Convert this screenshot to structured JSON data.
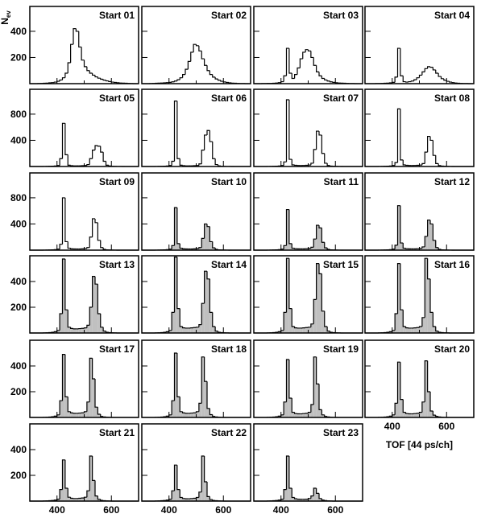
{
  "chart_data": {
    "type": "histogram",
    "ylabel": "N",
    "ylabel_sub": "ev",
    "xlabel": "TOF [44 ps/ch]",
    "xlim": [
      300,
      700
    ],
    "xticks": [
      400,
      600
    ],
    "xminorticks": [
      500
    ],
    "color": "#000000",
    "fill_color": "#c0c0c0",
    "bins": [
      300,
      310,
      320,
      330,
      340,
      350,
      360,
      370,
      380,
      390,
      400,
      410,
      420,
      430,
      440,
      450,
      460,
      470,
      480,
      490,
      500,
      510,
      520,
      530,
      540,
      550,
      560,
      570,
      580,
      590,
      600,
      610,
      620,
      630,
      640,
      650,
      660,
      670,
      680,
      690,
      700
    ],
    "panels": [
      {
        "title": "Start 01",
        "ylim": [
          0,
          590
        ],
        "yticks": [
          200,
          400
        ],
        "values": [
          0,
          0,
          0,
          1,
          2,
          3,
          4,
          6,
          8,
          12,
          18,
          28,
          45,
          80,
          160,
          300,
          420,
          400,
          280,
          180,
          130,
          100,
          80,
          65,
          52,
          42,
          34,
          27,
          21,
          16,
          12,
          9,
          7,
          5,
          4,
          3,
          2,
          1,
          0,
          0
        ]
      },
      {
        "title": "Start 02",
        "ylim": [
          0,
          590
        ],
        "yticks": [
          200,
          400
        ],
        "values": [
          0,
          0,
          0,
          1,
          2,
          3,
          4,
          5,
          6,
          8,
          10,
          14,
          20,
          30,
          45,
          70,
          110,
          170,
          240,
          300,
          290,
          250,
          190,
          140,
          100,
          70,
          50,
          36,
          26,
          18,
          13,
          9,
          6,
          4,
          3,
          2,
          1,
          1,
          0,
          0
        ]
      },
      {
        "title": "Start 03",
        "ylim": [
          0,
          590
        ],
        "yticks": [
          200,
          400
        ],
        "values": [
          0,
          0,
          0,
          1,
          1,
          2,
          2,
          3,
          5,
          8,
          15,
          60,
          270,
          80,
          40,
          70,
          120,
          190,
          240,
          260,
          250,
          200,
          140,
          90,
          60,
          40,
          28,
          20,
          14,
          10,
          7,
          5,
          4,
          3,
          2,
          1,
          1,
          0,
          0,
          0
        ]
      },
      {
        "title": "Start 04",
        "ylim": [
          0,
          590
        ],
        "yticks": [
          200,
          400
        ],
        "values": [
          0,
          0,
          0,
          0,
          1,
          1,
          2,
          3,
          4,
          6,
          10,
          50,
          270,
          60,
          15,
          12,
          15,
          20,
          30,
          45,
          65,
          90,
          115,
          130,
          125,
          105,
          80,
          55,
          38,
          26,
          18,
          12,
          8,
          5,
          3,
          2,
          1,
          1,
          0,
          0
        ]
      },
      {
        "title": "Start 05",
        "ylim": [
          0,
          1180
        ],
        "yticks": [
          400,
          800
        ],
        "values": [
          0,
          0,
          0,
          0,
          0,
          1,
          2,
          3,
          5,
          8,
          15,
          120,
          660,
          180,
          20,
          12,
          10,
          10,
          10,
          12,
          15,
          30,
          120,
          250,
          320,
          310,
          220,
          80,
          20,
          8,
          4,
          2,
          1,
          1,
          0,
          0,
          0,
          0,
          0,
          0
        ]
      },
      {
        "title": "Start 06",
        "ylim": [
          0,
          1180
        ],
        "yticks": [
          400,
          800
        ],
        "values": [
          0,
          0,
          0,
          0,
          0,
          1,
          2,
          3,
          5,
          8,
          15,
          80,
          1000,
          120,
          20,
          12,
          10,
          10,
          10,
          12,
          15,
          40,
          250,
          480,
          550,
          380,
          120,
          30,
          10,
          4,
          2,
          1,
          1,
          0,
          0,
          0,
          0,
          0,
          0,
          0
        ]
      },
      {
        "title": "Start 07",
        "ylim": [
          0,
          1180
        ],
        "yticks": [
          400,
          800
        ],
        "values": [
          0,
          0,
          0,
          0,
          0,
          1,
          2,
          3,
          5,
          8,
          15,
          70,
          1020,
          110,
          25,
          18,
          15,
          15,
          16,
          18,
          22,
          50,
          260,
          540,
          480,
          200,
          50,
          15,
          6,
          3,
          2,
          1,
          0,
          0,
          0,
          0,
          0,
          0,
          0,
          0
        ]
      },
      {
        "title": "Start 08",
        "ylim": [
          0,
          1180
        ],
        "yticks": [
          400,
          800
        ],
        "values": [
          0,
          0,
          0,
          0,
          0,
          1,
          2,
          3,
          5,
          8,
          15,
          60,
          880,
          100,
          25,
          18,
          15,
          15,
          16,
          18,
          22,
          45,
          220,
          460,
          400,
          170,
          45,
          14,
          6,
          3,
          2,
          1,
          0,
          0,
          0,
          0,
          0,
          0,
          0,
          0
        ]
      },
      {
        "title": "Start 09",
        "ylim": [
          0,
          1180
        ],
        "yticks": [
          400,
          800
        ],
        "values": [
          0,
          0,
          0,
          0,
          0,
          1,
          2,
          3,
          5,
          8,
          15,
          90,
          800,
          130,
          30,
          20,
          18,
          18,
          18,
          20,
          25,
          40,
          200,
          480,
          420,
          150,
          40,
          12,
          5,
          3,
          2,
          1,
          0,
          0,
          0,
          0,
          0,
          0,
          0,
          0
        ]
      },
      {
        "title": "Start 10",
        "ylim": [
          0,
          1180
        ],
        "yticks": [
          400,
          800
        ],
        "filled": true,
        "values": [
          0,
          0,
          0,
          0,
          0,
          1,
          2,
          3,
          5,
          8,
          15,
          70,
          650,
          100,
          30,
          20,
          18,
          18,
          18,
          20,
          25,
          40,
          180,
          400,
          360,
          130,
          35,
          12,
          5,
          3,
          2,
          1,
          0,
          0,
          0,
          0,
          0,
          0,
          0,
          0
        ]
      },
      {
        "title": "Start 11",
        "ylim": [
          0,
          1180
        ],
        "yticks": [
          400,
          800
        ],
        "filled": true,
        "values": [
          0,
          0,
          0,
          0,
          0,
          1,
          2,
          3,
          5,
          8,
          15,
          70,
          620,
          100,
          30,
          22,
          20,
          20,
          20,
          22,
          28,
          45,
          170,
          380,
          340,
          120,
          35,
          12,
          5,
          3,
          2,
          1,
          0,
          0,
          0,
          0,
          0,
          0,
          0,
          0
        ]
      },
      {
        "title": "Start 12",
        "ylim": [
          0,
          1180
        ],
        "yticks": [
          400,
          800
        ],
        "filled": true,
        "values": [
          0,
          0,
          0,
          0,
          0,
          1,
          2,
          3,
          5,
          8,
          15,
          75,
          680,
          110,
          30,
          22,
          20,
          20,
          20,
          22,
          28,
          50,
          210,
          460,
          400,
          150,
          40,
          12,
          5,
          3,
          2,
          1,
          0,
          0,
          0,
          0,
          0,
          0,
          0,
          0
        ]
      },
      {
        "title": "Start 13",
        "ylim": [
          0,
          600
        ],
        "yticks": [
          200,
          400
        ],
        "filled": true,
        "values": [
          0,
          0,
          0,
          0,
          0,
          1,
          2,
          3,
          6,
          10,
          20,
          150,
          575,
          180,
          45,
          35,
          32,
          32,
          34,
          36,
          40,
          60,
          200,
          440,
          380,
          150,
          45,
          15,
          6,
          3,
          2,
          1,
          0,
          0,
          0,
          0,
          0,
          0,
          0,
          0
        ]
      },
      {
        "title": "Start 14",
        "ylim": [
          0,
          600
        ],
        "yticks": [
          200,
          400
        ],
        "filled": true,
        "values": [
          0,
          0,
          0,
          0,
          0,
          1,
          2,
          3,
          6,
          10,
          20,
          160,
          590,
          190,
          50,
          40,
          38,
          38,
          40,
          42,
          45,
          65,
          230,
          480,
          420,
          160,
          50,
          15,
          6,
          3,
          2,
          1,
          0,
          0,
          0,
          0,
          0,
          0,
          0,
          0
        ]
      },
      {
        "title": "Start 15",
        "ylim": [
          0,
          600
        ],
        "yticks": [
          200,
          400
        ],
        "filled": true,
        "values": [
          0,
          0,
          0,
          0,
          0,
          1,
          2,
          3,
          6,
          10,
          20,
          160,
          580,
          190,
          50,
          40,
          38,
          38,
          40,
          42,
          45,
          70,
          260,
          540,
          460,
          170,
          50,
          15,
          6,
          3,
          2,
          1,
          0,
          0,
          0,
          0,
          0,
          0,
          0,
          0
        ]
      },
      {
        "title": "Start 16",
        "ylim": [
          0,
          600
        ],
        "yticks": [
          200,
          400
        ],
        "filled": true,
        "values": [
          0,
          0,
          0,
          0,
          0,
          1,
          2,
          3,
          6,
          10,
          20,
          150,
          540,
          180,
          50,
          40,
          38,
          38,
          40,
          42,
          50,
          120,
          580,
          420,
          160,
          50,
          15,
          6,
          3,
          2,
          1,
          0,
          0,
          0,
          0,
          0,
          0,
          0,
          0,
          0
        ]
      },
      {
        "title": "Start 17",
        "ylim": [
          0,
          600
        ],
        "yticks": [
          200,
          400
        ],
        "filled": true,
        "values": [
          0,
          0,
          0,
          0,
          0,
          1,
          2,
          3,
          6,
          10,
          20,
          130,
          490,
          160,
          45,
          35,
          32,
          32,
          34,
          36,
          45,
          120,
          460,
          300,
          80,
          25,
          8,
          4,
          2,
          1,
          0,
          0,
          0,
          0,
          0,
          0,
          0,
          0,
          0,
          0
        ]
      },
      {
        "title": "Start 18",
        "ylim": [
          0,
          600
        ],
        "yticks": [
          200,
          400
        ],
        "filled": true,
        "values": [
          0,
          0,
          0,
          0,
          0,
          1,
          2,
          3,
          6,
          10,
          20,
          130,
          500,
          160,
          45,
          35,
          32,
          32,
          34,
          36,
          45,
          110,
          470,
          280,
          70,
          22,
          8,
          4,
          2,
          1,
          0,
          0,
          0,
          0,
          0,
          0,
          0,
          0,
          0,
          0
        ]
      },
      {
        "title": "Start 19",
        "ylim": [
          0,
          600
        ],
        "yticks": [
          200,
          400
        ],
        "filled": true,
        "values": [
          0,
          0,
          0,
          0,
          0,
          1,
          2,
          3,
          6,
          10,
          20,
          120,
          450,
          150,
          40,
          30,
          28,
          28,
          30,
          32,
          40,
          100,
          470,
          260,
          60,
          20,
          8,
          4,
          2,
          1,
          0,
          0,
          0,
          0,
          0,
          0,
          0,
          0,
          0,
          0
        ]
      },
      {
        "title": "Start 20",
        "ylim": [
          0,
          600
        ],
        "yticks": [
          200,
          400
        ],
        "filled": true,
        "values": [
          0,
          0,
          0,
          0,
          0,
          1,
          2,
          3,
          6,
          10,
          20,
          110,
          430,
          140,
          40,
          30,
          28,
          28,
          30,
          32,
          40,
          120,
          440,
          200,
          50,
          18,
          8,
          4,
          2,
          1,
          0,
          0,
          0,
          0,
          0,
          0,
          0,
          0,
          0,
          0
        ]
      },
      {
        "title": "Start 21",
        "ylim": [
          0,
          600
        ],
        "yticks": [
          200,
          400
        ],
        "filled": true,
        "values": [
          0,
          0,
          0,
          0,
          0,
          1,
          2,
          3,
          5,
          8,
          15,
          90,
          320,
          100,
          30,
          22,
          20,
          20,
          22,
          24,
          30,
          80,
          350,
          160,
          40,
          14,
          6,
          3,
          2,
          1,
          0,
          0,
          0,
          0,
          0,
          0,
          0,
          0,
          0,
          0
        ]
      },
      {
        "title": "Start 22",
        "ylim": [
          0,
          600
        ],
        "yticks": [
          200,
          400
        ],
        "filled": true,
        "values": [
          0,
          0,
          0,
          0,
          0,
          1,
          2,
          3,
          5,
          8,
          15,
          80,
          280,
          90,
          28,
          20,
          18,
          18,
          20,
          22,
          28,
          70,
          350,
          150,
          35,
          12,
          5,
          3,
          2,
          1,
          0,
          0,
          0,
          0,
          0,
          0,
          0,
          0,
          0,
          0
        ]
      },
      {
        "title": "Start 23",
        "ylim": [
          0,
          600
        ],
        "yticks": [
          200,
          400
        ],
        "filled": true,
        "values": [
          0,
          0,
          0,
          0,
          0,
          1,
          2,
          3,
          5,
          8,
          15,
          90,
          350,
          100,
          28,
          18,
          15,
          14,
          14,
          15,
          20,
          40,
          100,
          60,
          20,
          8,
          4,
          2,
          1,
          0,
          0,
          0,
          0,
          0,
          0,
          0,
          0,
          0,
          0,
          0
        ]
      }
    ]
  }
}
